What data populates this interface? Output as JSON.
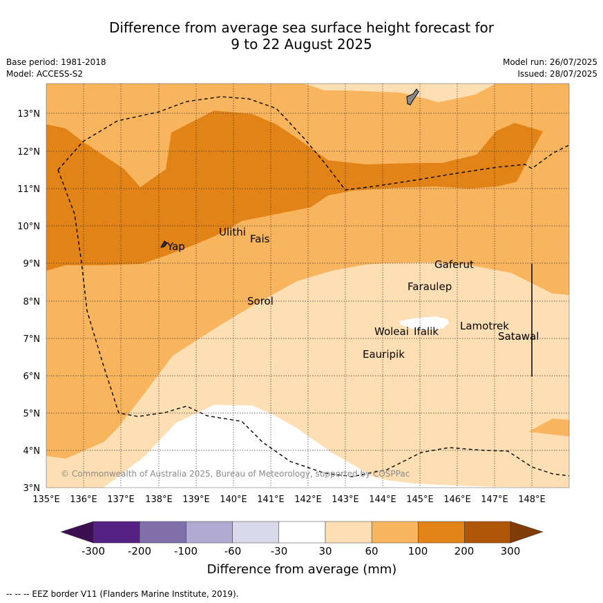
{
  "title": {
    "line1": "Difference from average sea surface height forecast for",
    "line2": "9 to 22 August 2025"
  },
  "meta": {
    "base_period": "Base period: 1981-2018",
    "model": "Model: ACCESS-S2",
    "model_run": "Model run: 26/07/2025",
    "issued": "Issued: 28/07/2025"
  },
  "map": {
    "lat_labels": [
      "13°N",
      "12°N",
      "11°N",
      "10°N",
      "9°N",
      "8°N",
      "7°N",
      "6°N",
      "5°N",
      "4°N",
      "3°N"
    ],
    "lon_labels": [
      "135°E",
      "136°E",
      "137°E",
      "138°E",
      "139°E",
      "140°E",
      "141°E",
      "142°E",
      "143°E",
      "144°E",
      "145°E",
      "146°E",
      "147°E",
      "148°E"
    ],
    "places": [
      {
        "name": "Yap"
      },
      {
        "name": "Ulithi"
      },
      {
        "name": "Fais"
      },
      {
        "name": "Gaferut"
      },
      {
        "name": "Faraulep"
      },
      {
        "name": "Sorol"
      },
      {
        "name": "Lamotrek"
      },
      {
        "name": "Woleai"
      },
      {
        "name": "Ifalik"
      },
      {
        "name": "Satawal"
      },
      {
        "name": "Eauripik"
      }
    ],
    "copyright": "© Commonwealth of Australia 2025, Bureau of Meteorology, supported by COSPPac"
  },
  "colorbar": {
    "ticks": [
      "-300",
      "-200",
      "-100",
      "-60",
      "-30",
      "30",
      "60",
      "100",
      "200",
      "300"
    ],
    "label": "Difference from average (mm)",
    "colors": {
      "below_-300": "#3b0f52",
      "-300_-200": "#542185",
      "-200_-100": "#7f6faa",
      "-100_-60": "#b0a9d2",
      "-60_-30": "#d9d9eb",
      "-30_30": "#ffffff",
      "30_60": "#fedfb3",
      "60_100": "#f9b45e",
      "100_200": "#e18317",
      "200_300": "#b05607",
      "above_300": "#7f3b08"
    }
  },
  "footer": {
    "legend_text": "--  --  -- EEZ border V11 (Flanders Marine Institute, 2019)."
  }
}
